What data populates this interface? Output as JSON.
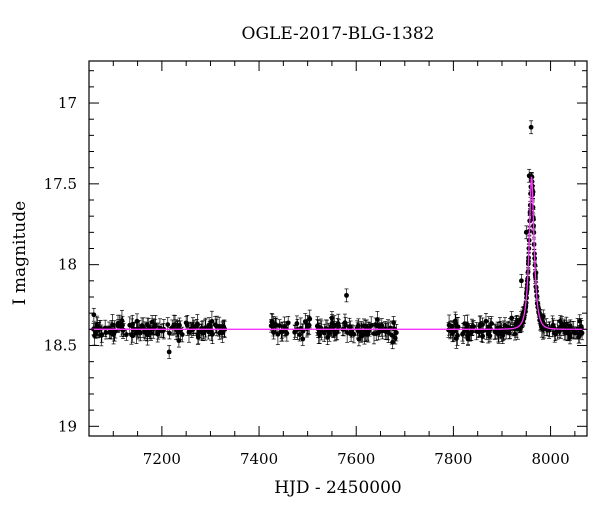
{
  "chart_data": {
    "type": "scatter",
    "title": "OGLE-2017-BLG-1382",
    "xlabel": "HJD - 2450000",
    "ylabel": "I magnitude",
    "xlim": [
      7050,
      8075
    ],
    "ylim": [
      19.06,
      16.74
    ],
    "y_inverted": true,
    "xticks_major": [
      7200,
      7400,
      7600,
      7800,
      8000
    ],
    "yticks_major": [
      17,
      17.5,
      18,
      18.5,
      19
    ],
    "ytick_labels": [
      "17",
      "17.5",
      "18",
      "18.5",
      "19"
    ],
    "xtick_labels": [
      "7200",
      "7400",
      "7600",
      "7800",
      "8000"
    ],
    "grid": false,
    "baseline_magnitude": 18.4,
    "observing_seasons_hjd": [
      [
        7058,
        7330
      ],
      [
        7425,
        7685
      ],
      [
        7790,
        8065
      ]
    ],
    "colors": {
      "data": "#000000",
      "model": "#ff33ff",
      "axes": "#000000"
    },
    "series": [
      {
        "points": [
          {
            "x": 7060,
            "y": 18.31
          },
          {
            "x": 7085,
            "y": 18.42
          },
          {
            "x": 7110,
            "y": 18.38
          },
          {
            "x": 7140,
            "y": 18.44
          },
          {
            "x": 7170,
            "y": 18.37
          },
          {
            "x": 7200,
            "y": 18.41
          },
          {
            "x": 7215,
            "y": 18.54
          },
          {
            "x": 7235,
            "y": 18.47
          },
          {
            "x": 7250,
            "y": 18.36
          },
          {
            "x": 7275,
            "y": 18.45
          },
          {
            "x": 7300,
            "y": 18.4
          },
          {
            "x": 7325,
            "y": 18.39
          },
          {
            "x": 7430,
            "y": 18.42
          },
          {
            "x": 7460,
            "y": 18.36
          },
          {
            "x": 7490,
            "y": 18.46
          },
          {
            "x": 7520,
            "y": 18.38
          },
          {
            "x": 7550,
            "y": 18.33
          },
          {
            "x": 7580,
            "y": 18.19
          },
          {
            "x": 7610,
            "y": 18.44
          },
          {
            "x": 7640,
            "y": 18.37
          },
          {
            "x": 7675,
            "y": 18.48
          },
          {
            "x": 7795,
            "y": 18.41
          },
          {
            "x": 7830,
            "y": 18.46
          },
          {
            "x": 7860,
            "y": 18.37
          },
          {
            "x": 7890,
            "y": 18.42
          },
          {
            "x": 7920,
            "y": 18.33
          },
          {
            "x": 7940,
            "y": 18.1
          },
          {
            "x": 7950,
            "y": 17.8
          },
          {
            "x": 7956,
            "y": 17.45
          },
          {
            "x": 7960,
            "y": 17.15
          },
          {
            "x": 7964,
            "y": 17.55
          },
          {
            "x": 7970,
            "y": 18.05
          },
          {
            "x": 7985,
            "y": 18.32
          },
          {
            "x": 8010,
            "y": 18.43
          },
          {
            "x": 8040,
            "y": 18.45
          },
          {
            "x": 8060,
            "y": 18.35
          }
        ]
      }
    ],
    "model": {
      "name": "",
      "u0": 0.45,
      "t0": 7961,
      "tE": 9
    }
  }
}
